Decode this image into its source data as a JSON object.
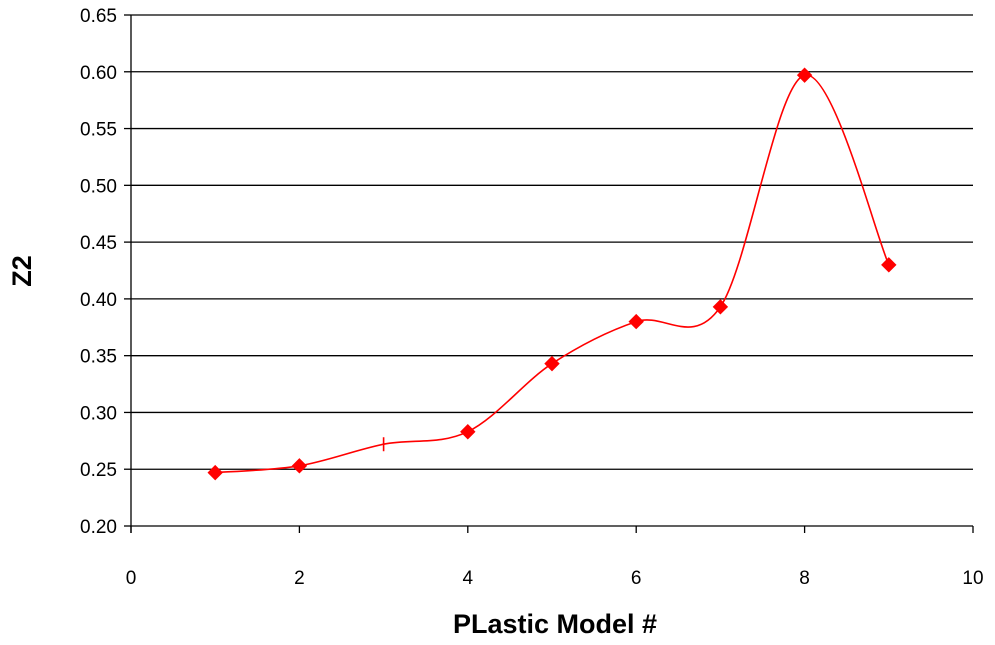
{
  "chart_data": {
    "type": "scatter",
    "xlabel": "PLastic Model #",
    "ylabel": "Z2",
    "xlim": [
      0,
      10
    ],
    "ylim": [
      0.2,
      0.65
    ],
    "xticks": [
      0,
      2,
      4,
      6,
      8,
      10
    ],
    "xtick_labels": [
      "0",
      "2",
      "4",
      "6",
      "8",
      "10"
    ],
    "yticks": [
      0.2,
      0.25,
      0.3,
      0.35,
      0.4,
      0.45,
      0.5,
      0.55,
      0.6,
      0.65
    ],
    "ytick_labels": [
      "0.20",
      "0.25",
      "0.30",
      "0.35",
      "0.40",
      "0.45",
      "0.50",
      "0.55",
      "0.60",
      "0.65"
    ],
    "grid": "horizontal",
    "legend": "none",
    "series": [
      {
        "marker": "diamond",
        "line": "smoothed",
        "color": "#ff0000",
        "x": [
          1,
          2,
          3,
          4,
          5,
          6,
          7,
          8,
          9
        ],
        "y": [
          0.247,
          0.253,
          0.272,
          0.283,
          0.343,
          0.38,
          0.393,
          0.597,
          0.43
        ],
        "markers_shown": [
          true,
          true,
          false,
          true,
          true,
          true,
          true,
          true,
          true
        ]
      }
    ]
  }
}
